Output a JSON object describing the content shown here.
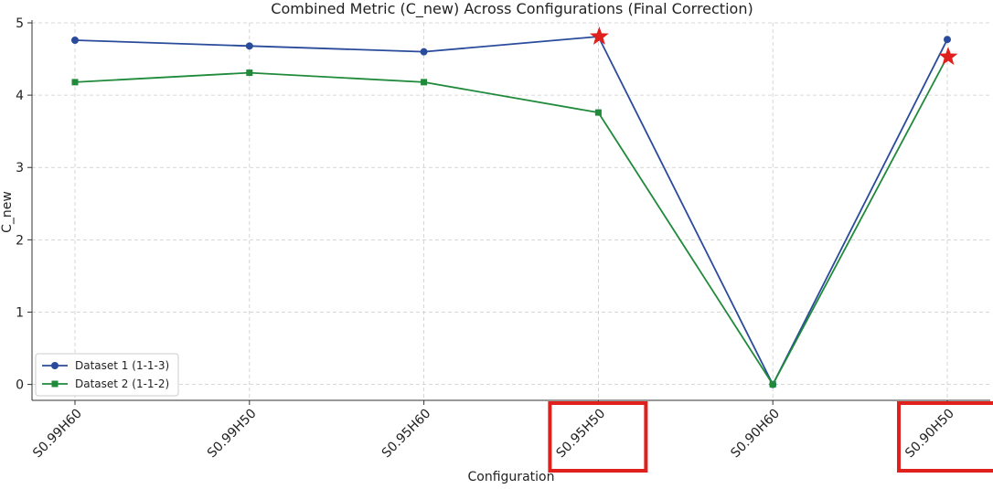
{
  "chart_data": {
    "type": "line",
    "title": "Combined Metric (C_new) Across Configurations (Final Correction)",
    "xlabel": "Configuration",
    "ylabel": "C_new",
    "categories": [
      "S0.99H60",
      "S0.99H50",
      "S0.95H60",
      "S0.95H50",
      "S0.90H60",
      "S0.90H50"
    ],
    "ylim": [
      -0.22,
      5.0
    ],
    "yticks": [
      0,
      1,
      2,
      3,
      4,
      5
    ],
    "grid": true,
    "legend_position": "lower-left",
    "series": [
      {
        "name": "Dataset 1 (1-1-3)",
        "marker": "circle",
        "color": "#2a4b9b",
        "values": [
          4.76,
          4.68,
          4.6,
          4.81,
          0.0,
          4.77
        ]
      },
      {
        "name": "Dataset 2 (1-1-2)",
        "marker": "square",
        "color": "#1f8a3a",
        "values": [
          4.18,
          4.31,
          4.18,
          3.76,
          0.0,
          4.53
        ]
      }
    ],
    "annotations": {
      "stars": [
        {
          "category": "S0.95H50",
          "value": 4.81,
          "color": "#e0201d"
        },
        {
          "category": "S0.90H50",
          "value": 4.53,
          "color": "#e0201d"
        }
      ],
      "highlighted_categories": [
        "S0.95H50",
        "S0.90H50"
      ],
      "highlight_color": "#e0201d"
    }
  }
}
